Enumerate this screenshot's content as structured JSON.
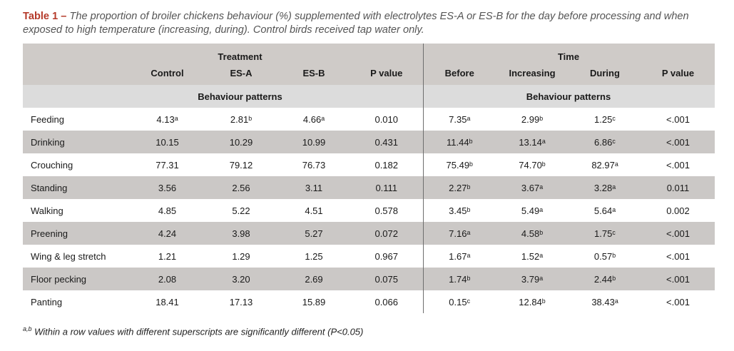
{
  "caption": {
    "label": "Table 1 –",
    "text": " The proportion of broiler chickens behaviour (%) supplemented with electrolytes ES-A or ES-B for the day before processing and when exposed to high temperature (increasing, during). Control birds received tap water only."
  },
  "header": {
    "treatment_label": "Treatment",
    "time_label": "Time",
    "columns": [
      "Control",
      "ES-A",
      "ES-B",
      "P value",
      "Before",
      "Increasing",
      "During",
      "P value"
    ],
    "group_label_left": "Behaviour patterns",
    "group_label_right": "Behaviour patterns"
  },
  "rows": [
    {
      "label": "Feeding",
      "cells": [
        "4.13ᵃ",
        "2.81ᵇ",
        "4.66ᵃ",
        "0.010",
        "7.35ᵃ",
        "2.99ᵇ",
        "1.25ᶜ",
        "<.001"
      ]
    },
    {
      "label": "Drinking",
      "cells": [
        "10.15",
        "10.29",
        "10.99",
        "0.431",
        "11.44ᵇ",
        "13.14ᵃ",
        "6.86ᶜ",
        "<.001"
      ]
    },
    {
      "label": "Crouching",
      "cells": [
        "77.31",
        "79.12",
        "76.73",
        "0.182",
        "75.49ᵇ",
        "74.70ᵇ",
        "82.97ᵃ",
        "<.001"
      ]
    },
    {
      "label": "Standing",
      "cells": [
        "3.56",
        "2.56",
        "3.11",
        "0.111",
        "2.27ᵇ",
        "3.67ᵃ",
        "3.28ᵃ",
        "0.011"
      ]
    },
    {
      "label": "Walking",
      "cells": [
        "4.85",
        "5.22",
        "4.51",
        "0.578",
        "3.45ᵇ",
        "5.49ᵃ",
        "5.64ᵃ",
        "0.002"
      ]
    },
    {
      "label": "Preening",
      "cells": [
        "4.24",
        "3.98",
        "5.27",
        "0.072",
        "7.16ᵃ",
        "4.58ᵇ",
        "1.75ᶜ",
        "<.001"
      ]
    },
    {
      "label": "Wing & leg stretch",
      "cells": [
        "1.21",
        "1.29",
        "1.25",
        "0.967",
        "1.67ᵃ",
        "1.52ᵃ",
        "0.57ᵇ",
        "<.001"
      ]
    },
    {
      "label": "Floor pecking",
      "cells": [
        "2.08",
        "3.20",
        "2.69",
        "0.075",
        "1.74ᵇ",
        "3.79ᵃ",
        "2.44ᵇ",
        "<.001"
      ]
    },
    {
      "label": "Panting",
      "cells": [
        "18.41",
        "17.13",
        "15.89",
        "0.066",
        "0.15ᶜ",
        "12.84ᵇ",
        "38.43ᵃ",
        "<.001"
      ]
    }
  ],
  "footnote": {
    "sup": "a,b",
    "text": " Within a row values with different superscripts are significantly different (P<0.05)"
  }
}
